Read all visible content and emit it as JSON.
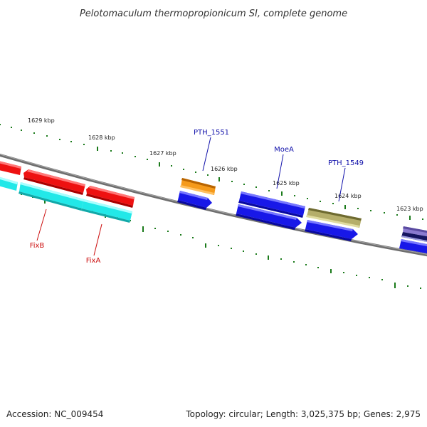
{
  "title": "Pelotomaculum thermopropionicum SI, complete genome",
  "footer": {
    "accession": "Accession: NC_009454",
    "summary": "Topology: circular; Length: 3,025,375 bp; Genes: 2,975"
  },
  "ticks": [
    "1629 kbp",
    "1628 kbp",
    "1627 kbp",
    "1626 kbp",
    "1625 kbp",
    "1624 kbp",
    "1623 kbp"
  ],
  "gene_labels": [
    {
      "name": "PTH_1551",
      "color": "#1010aa"
    },
    {
      "name": "MoeA",
      "color": "#1010aa"
    },
    {
      "name": "PTH_1549",
      "color": "#1010aa"
    },
    {
      "name": "FixB",
      "color": "#cc1010"
    },
    {
      "name": "FixA",
      "color": "#cc1010"
    }
  ],
  "colors": {
    "backbone": "#7a7a7a",
    "tick_dots": "#1a7a1a",
    "red_gene": "#ee1111",
    "cyan_gene": "#22e8e8",
    "orange_gene": "#f59a1a",
    "blue_gene": "#1818e8",
    "khaki_gene": "#b5ae6a",
    "navy_gene": "#151560",
    "lavender_gene": "#8a7ad0"
  }
}
